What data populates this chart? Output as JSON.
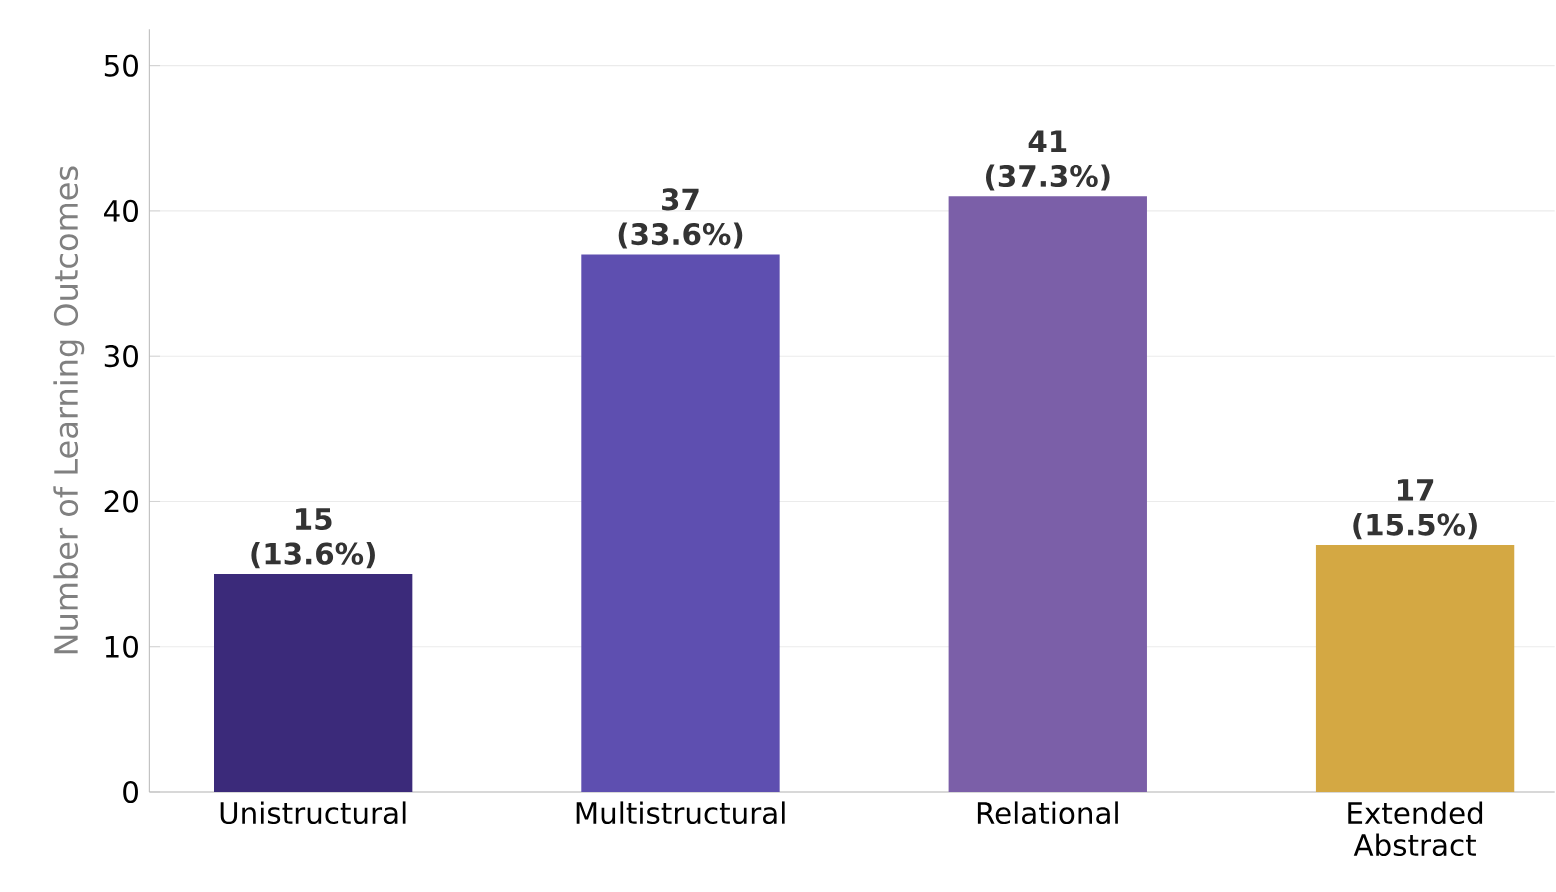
{
  "chart_data": {
    "type": "bar",
    "ylabel": "Number of Learning Outcomes",
    "categories": [
      "Unistructural",
      "Multistructural",
      "Relational",
      "Extended Abstract"
    ],
    "values": [
      15,
      37,
      41,
      17
    ],
    "colors": [
      "#3b2a7a",
      "#5e4fb0",
      "#7b5fa8",
      "#d4a843"
    ],
    "value_labels": [
      "15 (13.6%)",
      "37 (33.6%)",
      "41 (37.3%)",
      "17 (15.5%)"
    ],
    "ylim": [
      0,
      52.5
    ],
    "yticks": [
      0,
      10,
      20,
      30,
      40,
      50
    ],
    "grid": "y"
  }
}
